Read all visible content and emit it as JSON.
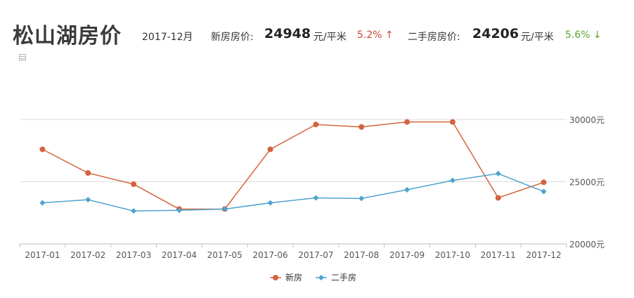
{
  "header": {
    "title": "松山湖房价",
    "period": "2017-12月",
    "new_house": {
      "label": "新房房价:",
      "value": "24948",
      "unit": "元/平米",
      "change": "5.2% ↑",
      "change_color": "#c9473a"
    },
    "second_house": {
      "label": "二手房房价:",
      "value": "24206",
      "unit": "元/平米",
      "change": "5.6% ↓",
      "change_color": "#5aa636"
    }
  },
  "chart_data": {
    "type": "line",
    "categories": [
      "2017-01",
      "2017-02",
      "2017-03",
      "2017-04",
      "2017-05",
      "2017-06",
      "2017-07",
      "2017-08",
      "2017-09",
      "2017-10",
      "2017-11",
      "2017-12"
    ],
    "series": [
      {
        "name": "新房",
        "color": "#d4643f",
        "marker": "circle",
        "values": [
          27600,
          25700,
          24800,
          22800,
          22800,
          27600,
          29600,
          29400,
          29800,
          29800,
          23700,
          24948
        ]
      },
      {
        "name": "二手房",
        "color": "#4ea3cf",
        "marker": "diamond",
        "values": [
          23300,
          23550,
          22650,
          22700,
          22800,
          23300,
          23700,
          23650,
          24350,
          25100,
          25650,
          24206
        ]
      }
    ],
    "ylim": [
      20000,
      30000
    ],
    "yticks": [
      "20000元",
      "25000元",
      "30000元"
    ],
    "grid": true,
    "legend": "bottom"
  }
}
